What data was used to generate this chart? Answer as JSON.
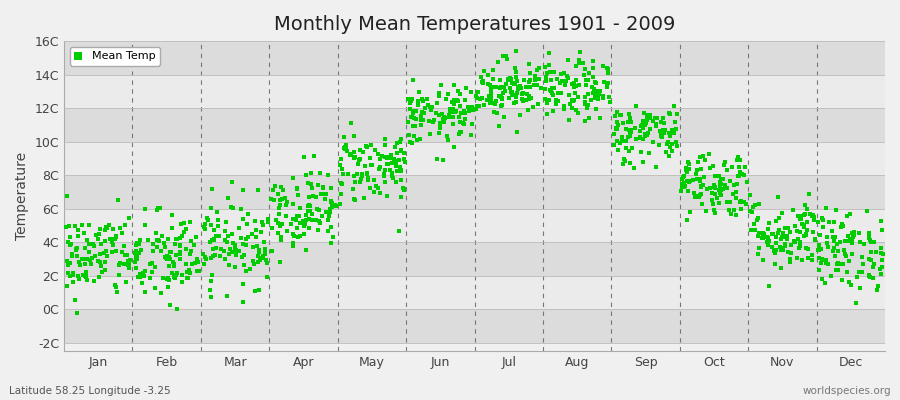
{
  "title": "Monthly Mean Temperatures 1901 - 2009",
  "ylabel": "Temperature",
  "xlabel_bottom_left": "Latitude 58.25 Longitude -3.25",
  "xlabel_bottom_right": "worldspecies.org",
  "legend_label": "Mean Temp",
  "dot_color": "#00CC00",
  "background_color": "#f0f0f0",
  "ylim": [
    -2.5,
    16
  ],
  "yticks": [
    -2,
    0,
    2,
    4,
    6,
    8,
    10,
    12,
    14,
    16
  ],
  "ytick_labels": [
    "-2C",
    "0C",
    "2C",
    "4C",
    "6C",
    "8C",
    "10C",
    "12C",
    "14C",
    "16C"
  ],
  "months": [
    "Jan",
    "Feb",
    "Mar",
    "Apr",
    "May",
    "Jun",
    "Jul",
    "Aug",
    "Sep",
    "Oct",
    "Nov",
    "Dec"
  ],
  "mean_temps_by_month": [
    3.2,
    3.0,
    4.0,
    6.0,
    8.5,
    11.5,
    13.2,
    13.0,
    10.5,
    7.5,
    4.5,
    3.5
  ],
  "std_by_month": [
    1.3,
    1.4,
    1.3,
    1.2,
    1.1,
    0.9,
    0.9,
    0.9,
    0.9,
    1.0,
    1.1,
    1.2
  ],
  "seed": 42,
  "n_years": 109,
  "marker_size": 8,
  "grid_color": "#bbbbbb",
  "dashed_line_color": "#777777",
  "band_colors_light": "#ebebeb",
  "band_colors_dark": "#dcdcdc",
  "title_fontsize": 14,
  "tick_fontsize": 9
}
